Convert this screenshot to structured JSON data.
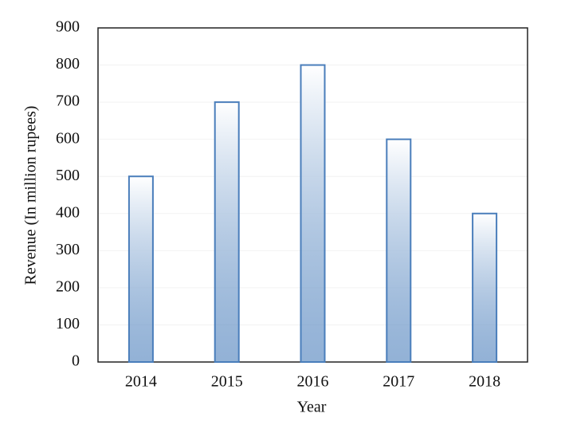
{
  "chart_data": {
    "type": "bar",
    "x_label": "Year",
    "y_label": "Revenue (In million rupees)",
    "categories": [
      "2014",
      "2015",
      "2016",
      "2017",
      "2018"
    ],
    "values": [
      500,
      700,
      800,
      600,
      400
    ],
    "color": "#4a7ebb",
    "ylim": [
      0,
      900
    ],
    "yticks": [
      0,
      100,
      200,
      300,
      400,
      500,
      600,
      700,
      800,
      900
    ],
    "grid": true
  }
}
